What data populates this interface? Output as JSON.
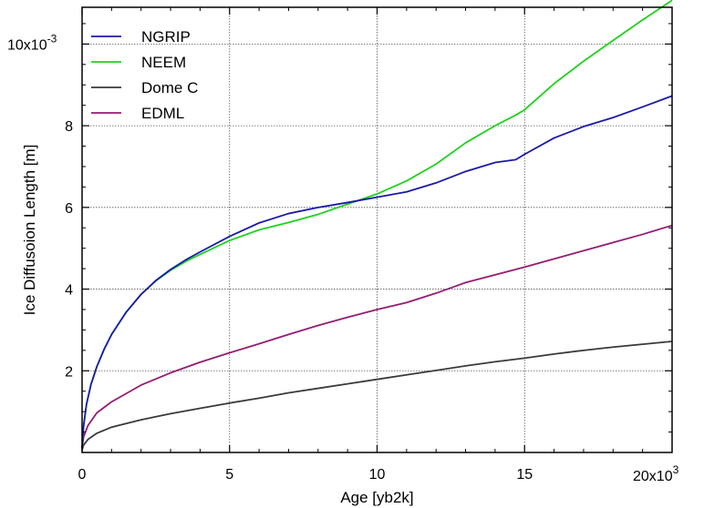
{
  "chart_data": {
    "type": "line",
    "xlabel": "Age [yb2k]",
    "ylabel": "Ice Diffusoion Length [m]",
    "xlim": [
      0,
      20000
    ],
    "ylim": [
      0,
      0.0109
    ],
    "grid": true,
    "legend_position": "top-left",
    "x_ticks": [
      {
        "value": 0,
        "label": "0"
      },
      {
        "value": 5000,
        "label": "5"
      },
      {
        "value": 10000,
        "label": "10"
      },
      {
        "value": 15000,
        "label": "15"
      }
    ],
    "x_multiplier": {
      "base": "20x10",
      "exponent": "3"
    },
    "y_ticks": [
      {
        "value": 0.002,
        "label": "2"
      },
      {
        "value": 0.004,
        "label": "4"
      },
      {
        "value": 0.006,
        "label": "6"
      },
      {
        "value": 0.008,
        "label": "8"
      }
    ],
    "y_multiplier": {
      "base": "10x10",
      "exponent": "-3"
    },
    "series": [
      {
        "name": "NGRIP",
        "color": "#1a1aa8",
        "x": [
          0,
          50,
          150,
          300,
          500,
          750,
          1000,
          1500,
          2000,
          2500,
          3000,
          3500,
          4000,
          5000,
          6000,
          7000,
          8000,
          9000,
          10000,
          11000,
          12000,
          13000,
          14000,
          14700,
          15000,
          16000,
          17000,
          18000,
          19000,
          20000
        ],
        "y": [
          0.0001,
          0.00064,
          0.00118,
          0.00166,
          0.0021,
          0.00253,
          0.00289,
          0.00344,
          0.00387,
          0.00421,
          0.00448,
          0.00471,
          0.00491,
          0.00529,
          0.00562,
          0.00585,
          0.006,
          0.00612,
          0.00625,
          0.00638,
          0.0066,
          0.00688,
          0.0071,
          0.00717,
          0.0073,
          0.0077,
          0.00798,
          0.0082,
          0.00846,
          0.00873
        ]
      },
      {
        "name": "NEEM",
        "color": "#1fd11f",
        "x": [
          0,
          50,
          150,
          300,
          500,
          750,
          1000,
          1500,
          2000,
          2500,
          3000,
          3500,
          4000,
          5000,
          6000,
          7000,
          8000,
          9000,
          10000,
          11000,
          12000,
          13000,
          14000,
          14700,
          15000,
          16000,
          17000,
          18000,
          19000,
          20000
        ],
        "y": [
          0.0001,
          0.00064,
          0.00118,
          0.00166,
          0.0021,
          0.00253,
          0.00289,
          0.00344,
          0.00387,
          0.0042,
          0.00446,
          0.00467,
          0.00485,
          0.00519,
          0.00545,
          0.00563,
          0.00583,
          0.00608,
          0.00633,
          0.00665,
          0.00706,
          0.00758,
          0.008,
          0.00826,
          0.00839,
          0.00903,
          0.00958,
          0.01009,
          0.01059,
          0.01107
        ]
      },
      {
        "name": "Dome C",
        "color": "#3a3a3a",
        "x": [
          0,
          50,
          200,
          500,
          1000,
          2000,
          3000,
          4000,
          5000,
          6000,
          7000,
          8000,
          9000,
          10000,
          11000,
          12000,
          13000,
          14000,
          15000,
          16000,
          17000,
          18000,
          19000,
          20000
        ],
        "y": [
          6e-05,
          0.00018,
          0.00032,
          0.00047,
          0.00062,
          0.0008,
          0.00095,
          0.00108,
          0.00121,
          0.00133,
          0.00146,
          0.00157,
          0.00168,
          0.00179,
          0.0019,
          0.00201,
          0.00212,
          0.00222,
          0.00231,
          0.00241,
          0.0025,
          0.00258,
          0.00265,
          0.00272
        ]
      },
      {
        "name": "EDML",
        "color": "#951c72",
        "x": [
          0,
          50,
          200,
          500,
          1000,
          2000,
          3000,
          4000,
          5000,
          6000,
          7000,
          8000,
          9000,
          10000,
          11000,
          12000,
          13000,
          14000,
          15000,
          16000,
          17000,
          18000,
          19000,
          20000
        ],
        "y": [
          0.00012,
          0.00038,
          0.00066,
          0.00097,
          0.00124,
          0.00165,
          0.00195,
          0.00221,
          0.00244,
          0.00266,
          0.00289,
          0.00311,
          0.00331,
          0.0035,
          0.00367,
          0.0039,
          0.00416,
          0.00435,
          0.00454,
          0.00474,
          0.00494,
          0.00514,
          0.00534,
          0.00556
        ]
      }
    ]
  }
}
